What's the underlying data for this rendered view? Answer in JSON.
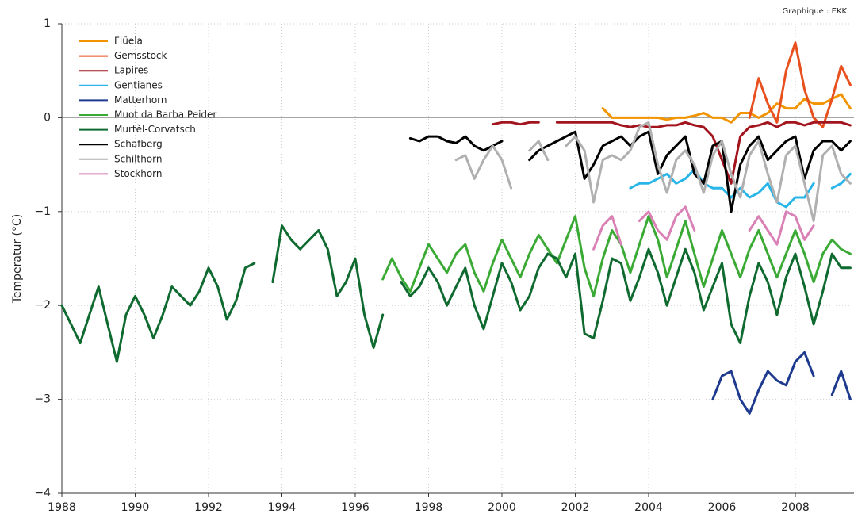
{
  "chart_data": {
    "type": "line",
    "annotation": "Graphique : EKK",
    "y_label": "Temperatur (°C)",
    "xlim": [
      1988,
      2009.6
    ],
    "xticks": [
      1988,
      1990,
      1992,
      1994,
      1996,
      1998,
      2000,
      2002,
      2004,
      2006,
      2008
    ],
    "ylim": [
      -4,
      1
    ],
    "yticks": [
      {
        "value": -4,
        "label": "−4"
      },
      {
        "value": -3,
        "label": "−3"
      },
      {
        "value": -2,
        "label": "−2"
      },
      {
        "value": -1,
        "label": "−1"
      },
      0,
      1
    ],
    "grid": true,
    "legend": "top-left",
    "x": [
      1988,
      1988.25,
      1988.5,
      1988.75,
      1989,
      1989.25,
      1989.5,
      1989.75,
      1990,
      1990.25,
      1990.5,
      1990.75,
      1991,
      1991.25,
      1991.5,
      1991.75,
      1992,
      1992.25,
      1992.5,
      1992.75,
      1993,
      1993.25,
      1993.5,
      1993.75,
      1994,
      1994.25,
      1994.5,
      1994.75,
      1995,
      1995.25,
      1995.5,
      1995.75,
      1996,
      1996.25,
      1996.5,
      1996.75,
      1997,
      1997.25,
      1997.5,
      1997.75,
      1998,
      1998.25,
      1998.5,
      1998.75,
      1999,
      1999.25,
      1999.5,
      1999.75,
      2000,
      2000.25,
      2000.5,
      2000.75,
      2001,
      2001.25,
      2001.5,
      2001.75,
      2002,
      2002.25,
      2002.5,
      2002.75,
      2003,
      2003.25,
      2003.5,
      2003.75,
      2004,
      2004.25,
      2004.5,
      2004.75,
      2005,
      2005.25,
      2005.5,
      2005.75,
      2006,
      2006.25,
      2006.5,
      2006.75,
      2007,
      2007.25,
      2007.5,
      2007.75,
      2008,
      2008.25,
      2008.5,
      2008.75,
      2009,
      2009.25,
      2009.5
    ],
    "series": [
      {
        "name": "Flüela",
        "color": "#f29400",
        "values": [
          null,
          null,
          null,
          null,
          null,
          null,
          null,
          null,
          null,
          null,
          null,
          null,
          null,
          null,
          null,
          null,
          null,
          null,
          null,
          null,
          null,
          null,
          null,
          null,
          null,
          null,
          null,
          null,
          null,
          null,
          null,
          null,
          null,
          null,
          null,
          null,
          null,
          null,
          null,
          null,
          null,
          null,
          null,
          null,
          null,
          null,
          null,
          null,
          null,
          null,
          null,
          null,
          null,
          null,
          null,
          null,
          null,
          null,
          null,
          0.1,
          0.0,
          0.0,
          0.0,
          0.0,
          0.0,
          0.0,
          -0.02,
          0.0,
          0.0,
          0.02,
          0.05,
          0.0,
          0.0,
          -0.05,
          0.05,
          0.05,
          0.0,
          0.05,
          0.15,
          0.1,
          0.1,
          0.2,
          0.15,
          0.15,
          0.2,
          0.25,
          0.1
        ]
      },
      {
        "name": "Gemsstock",
        "color": "#e8501e",
        "values": [
          null,
          null,
          null,
          null,
          null,
          null,
          null,
          null,
          null,
          null,
          null,
          null,
          null,
          null,
          null,
          null,
          null,
          null,
          null,
          null,
          null,
          null,
          null,
          null,
          null,
          null,
          null,
          null,
          null,
          null,
          null,
          null,
          null,
          null,
          null,
          null,
          null,
          null,
          null,
          null,
          null,
          null,
          null,
          null,
          null,
          null,
          null,
          null,
          null,
          null,
          null,
          null,
          null,
          null,
          null,
          null,
          null,
          null,
          null,
          null,
          null,
          null,
          null,
          null,
          null,
          null,
          null,
          null,
          null,
          null,
          null,
          null,
          null,
          null,
          null,
          0.0,
          0.42,
          0.15,
          -0.05,
          0.5,
          0.8,
          0.3,
          0.0,
          -0.1,
          0.2,
          0.55,
          0.35
        ]
      },
      {
        "name": "Lapires",
        "color": "#a3151e",
        "values": [
          null,
          null,
          null,
          null,
          null,
          null,
          null,
          null,
          null,
          null,
          null,
          null,
          null,
          null,
          null,
          null,
          null,
          null,
          null,
          null,
          null,
          null,
          null,
          null,
          null,
          null,
          null,
          null,
          null,
          null,
          null,
          null,
          null,
          null,
          null,
          null,
          null,
          null,
          null,
          null,
          null,
          null,
          null,
          null,
          null,
          null,
          null,
          -0.07,
          -0.05,
          -0.05,
          -0.07,
          -0.05,
          -0.05,
          null,
          -0.05,
          -0.05,
          -0.05,
          -0.05,
          -0.05,
          -0.05,
          -0.05,
          -0.08,
          -0.1,
          -0.08,
          -0.1,
          -0.1,
          -0.08,
          -0.08,
          -0.05,
          -0.08,
          -0.1,
          -0.2,
          -0.45,
          -0.7,
          -0.2,
          -0.1,
          -0.08,
          -0.05,
          -0.1,
          -0.05,
          -0.05,
          -0.08,
          -0.05,
          -0.05,
          -0.05,
          -0.05,
          -0.08
        ]
      },
      {
        "name": "Gentianes",
        "color": "#29b5e8",
        "values": [
          null,
          null,
          null,
          null,
          null,
          null,
          null,
          null,
          null,
          null,
          null,
          null,
          null,
          null,
          null,
          null,
          null,
          null,
          null,
          null,
          null,
          null,
          null,
          null,
          null,
          null,
          null,
          null,
          null,
          null,
          null,
          null,
          null,
          null,
          null,
          null,
          null,
          null,
          null,
          null,
          null,
          null,
          null,
          null,
          null,
          null,
          null,
          null,
          null,
          null,
          null,
          null,
          null,
          null,
          null,
          null,
          null,
          null,
          null,
          null,
          null,
          null,
          -0.75,
          -0.7,
          -0.7,
          -0.65,
          -0.6,
          -0.7,
          -0.65,
          -0.55,
          -0.7,
          -0.75,
          -0.75,
          -0.85,
          -0.75,
          -0.85,
          -0.8,
          -0.7,
          -0.9,
          -0.95,
          -0.85,
          -0.85,
          -0.7,
          null,
          -0.75,
          -0.7,
          -0.6
        ]
      },
      {
        "name": "Matterhorn",
        "color": "#1d3a8f",
        "values": [
          null,
          null,
          null,
          null,
          null,
          null,
          null,
          null,
          null,
          null,
          null,
          null,
          null,
          null,
          null,
          null,
          null,
          null,
          null,
          null,
          null,
          null,
          null,
          null,
          null,
          null,
          null,
          null,
          null,
          null,
          null,
          null,
          null,
          null,
          null,
          null,
          null,
          null,
          null,
          null,
          null,
          null,
          null,
          null,
          null,
          null,
          null,
          null,
          null,
          null,
          null,
          null,
          null,
          null,
          null,
          null,
          null,
          null,
          null,
          null,
          null,
          null,
          null,
          null,
          null,
          null,
          null,
          null,
          null,
          null,
          null,
          -3.0,
          -2.75,
          -2.7,
          -3.0,
          -3.15,
          -2.9,
          -2.7,
          -2.8,
          -2.85,
          -2.6,
          -2.5,
          -2.75,
          null,
          -2.95,
          -2.7,
          -3.0
        ]
      },
      {
        "name": "Muot da Barba Peider",
        "color": "#3aaa35",
        "values": [
          null,
          null,
          null,
          null,
          null,
          null,
          null,
          null,
          null,
          null,
          null,
          null,
          null,
          null,
          null,
          null,
          null,
          null,
          null,
          null,
          null,
          null,
          null,
          null,
          null,
          null,
          null,
          null,
          null,
          null,
          null,
          null,
          null,
          null,
          null,
          -1.72,
          -1.5,
          -1.7,
          -1.85,
          -1.6,
          -1.35,
          -1.5,
          -1.65,
          -1.45,
          -1.35,
          -1.65,
          -1.85,
          -1.55,
          -1.3,
          -1.5,
          -1.7,
          -1.45,
          -1.25,
          -1.4,
          -1.55,
          -1.3,
          -1.05,
          -1.6,
          -1.9,
          -1.5,
          -1.2,
          -1.35,
          -1.65,
          -1.35,
          -1.05,
          -1.3,
          -1.7,
          -1.4,
          -1.1,
          -1.45,
          -1.8,
          -1.5,
          -1.2,
          -1.45,
          -1.7,
          -1.4,
          -1.2,
          -1.45,
          -1.7,
          -1.45,
          -1.2,
          -1.45,
          -1.75,
          -1.45,
          -1.3,
          -1.4,
          -1.45
        ]
      },
      {
        "name": "Murtèl-Corvatsch",
        "color": "#0f6a30",
        "values": [
          -2.0,
          -2.2,
          -2.4,
          -2.1,
          -1.8,
          -2.2,
          -2.6,
          -2.1,
          -1.9,
          -2.1,
          -2.35,
          -2.1,
          -1.8,
          -1.9,
          -2.0,
          -1.85,
          -1.6,
          -1.8,
          -2.15,
          -1.95,
          -1.6,
          -1.55,
          null,
          -1.75,
          -1.15,
          -1.3,
          -1.4,
          -1.3,
          -1.2,
          -1.4,
          -1.9,
          -1.75,
          -1.5,
          -2.1,
          -2.45,
          -2.1,
          null,
          -1.75,
          -1.9,
          -1.8,
          -1.6,
          -1.75,
          -2.0,
          -1.8,
          -1.6,
          -2.0,
          -2.25,
          -1.9,
          -1.55,
          -1.75,
          -2.05,
          -1.9,
          -1.6,
          -1.45,
          -1.5,
          -1.7,
          -1.45,
          -2.3,
          -2.35,
          -1.95,
          -1.5,
          -1.55,
          -1.95,
          -1.7,
          -1.4,
          -1.65,
          -2.0,
          -1.7,
          -1.4,
          -1.65,
          -2.05,
          -1.8,
          -1.55,
          -2.2,
          -2.4,
          -1.9,
          -1.55,
          -1.75,
          -2.1,
          -1.7,
          -1.45,
          -1.8,
          -2.2,
          -1.85,
          -1.45,
          -1.6,
          -1.6
        ]
      },
      {
        "name": "Schafberg",
        "color": "#000000",
        "values": [
          null,
          null,
          null,
          null,
          null,
          null,
          null,
          null,
          null,
          null,
          null,
          null,
          null,
          null,
          null,
          null,
          null,
          null,
          null,
          null,
          null,
          null,
          null,
          null,
          null,
          null,
          null,
          null,
          null,
          null,
          null,
          null,
          null,
          null,
          null,
          null,
          null,
          null,
          -0.22,
          -0.25,
          -0.2,
          -0.2,
          -0.25,
          -0.27,
          -0.2,
          -0.3,
          -0.35,
          -0.3,
          -0.25,
          null,
          null,
          -0.45,
          -0.35,
          -0.3,
          -0.25,
          -0.2,
          -0.15,
          -0.65,
          -0.5,
          -0.3,
          -0.25,
          -0.2,
          -0.3,
          -0.2,
          -0.15,
          -0.6,
          -0.4,
          -0.3,
          -0.2,
          -0.6,
          -0.7,
          -0.3,
          -0.25,
          -1.0,
          -0.5,
          -0.3,
          -0.2,
          -0.45,
          -0.35,
          -0.25,
          -0.2,
          -0.65,
          -0.35,
          -0.25,
          -0.25,
          -0.35,
          -0.25
        ]
      },
      {
        "name": "Schilthorn",
        "color": "#b0b0b0",
        "values": [
          null,
          null,
          null,
          null,
          null,
          null,
          null,
          null,
          null,
          null,
          null,
          null,
          null,
          null,
          null,
          null,
          null,
          null,
          null,
          null,
          null,
          null,
          null,
          null,
          null,
          null,
          null,
          null,
          null,
          null,
          null,
          null,
          null,
          null,
          null,
          null,
          null,
          null,
          null,
          null,
          null,
          null,
          null,
          -0.45,
          -0.4,
          -0.65,
          -0.45,
          -0.3,
          -0.45,
          -0.75,
          null,
          -0.35,
          -0.25,
          -0.45,
          null,
          -0.3,
          -0.2,
          -0.35,
          -0.9,
          -0.45,
          -0.4,
          -0.45,
          -0.35,
          -0.1,
          -0.05,
          -0.5,
          -0.8,
          -0.45,
          -0.35,
          -0.5,
          -0.8,
          -0.4,
          -0.25,
          -0.6,
          -0.85,
          -0.4,
          -0.25,
          -0.6,
          -0.9,
          -0.4,
          -0.3,
          -0.7,
          -1.1,
          -0.4,
          -0.3,
          -0.6,
          -0.7
        ]
      },
      {
        "name": "Stockhorn",
        "color": "#d981b5",
        "values": [
          null,
          null,
          null,
          null,
          null,
          null,
          null,
          null,
          null,
          null,
          null,
          null,
          null,
          null,
          null,
          null,
          null,
          null,
          null,
          null,
          null,
          null,
          null,
          null,
          null,
          null,
          null,
          null,
          null,
          null,
          null,
          null,
          null,
          null,
          null,
          null,
          null,
          null,
          null,
          null,
          null,
          null,
          null,
          null,
          null,
          null,
          null,
          null,
          null,
          null,
          null,
          null,
          null,
          null,
          null,
          null,
          null,
          null,
          -1.4,
          -1.15,
          -1.05,
          -1.35,
          null,
          -1.1,
          -1.0,
          -1.2,
          -1.3,
          -1.05,
          -0.95,
          -1.2,
          null,
          null,
          null,
          null,
          null,
          -1.2,
          -1.05,
          -1.2,
          -1.35,
          -1.0,
          -1.05,
          -1.3,
          -1.15,
          null,
          null,
          null,
          null
        ]
      }
    ]
  }
}
